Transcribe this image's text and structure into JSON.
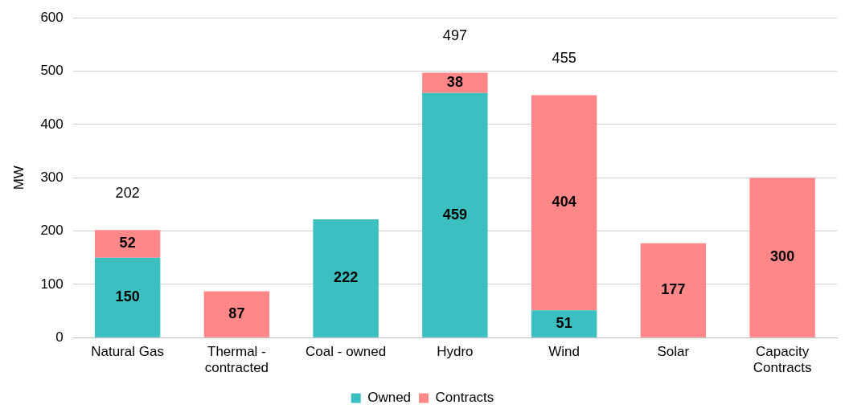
{
  "chart_data": {
    "type": "bar",
    "stacked": true,
    "ylabel": "MW",
    "categories": [
      "Natural Gas",
      "Thermal - contracted",
      "Coal - owned",
      "Hydro",
      "Wind",
      "Solar",
      "Capacity Contracts"
    ],
    "series": [
      {
        "name": "Owned",
        "color": "#3bbfc0",
        "values": [
          150,
          null,
          222,
          459,
          51,
          null,
          null
        ]
      },
      {
        "name": "Contracts",
        "color": "#ff8787",
        "values": [
          52,
          87,
          null,
          38,
          404,
          177,
          300
        ]
      }
    ],
    "totals": [
      "202",
      null,
      null,
      "497",
      "455",
      null,
      null
    ],
    "data_labels": true,
    "ylim": [
      0,
      600
    ],
    "yticks": [
      0,
      100,
      200,
      300,
      400,
      500,
      600
    ],
    "grid": "y",
    "legend": "bottom"
  }
}
